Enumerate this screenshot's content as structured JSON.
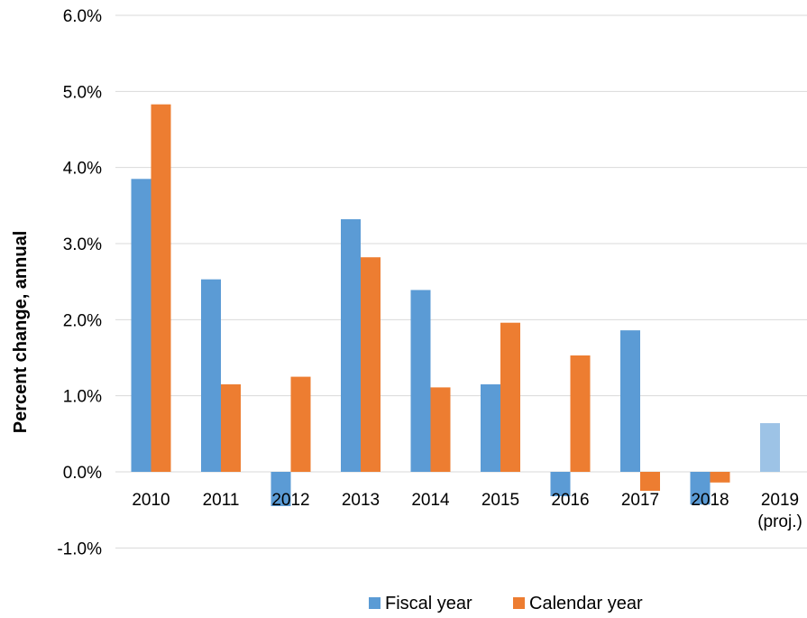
{
  "chart_data": {
    "type": "bar",
    "title": "",
    "xlabel": "",
    "ylabel": "Percent change, annual",
    "categories": [
      [
        "2010"
      ],
      [
        "2011"
      ],
      [
        "2012"
      ],
      [
        "2013"
      ],
      [
        "2014"
      ],
      [
        "2015"
      ],
      [
        "2016"
      ],
      [
        "2017"
      ],
      [
        "2018"
      ],
      [
        "2019",
        "(proj.)"
      ]
    ],
    "series": [
      {
        "name": "Fiscal year",
        "color": "#5b9bd5",
        "projected_color": "#9dc3e6",
        "values": [
          3.85,
          2.53,
          -0.45,
          3.32,
          2.39,
          1.15,
          -0.32,
          1.86,
          -0.43,
          0.64
        ],
        "projected_index": 9
      },
      {
        "name": "Calendar year",
        "color": "#ed7d31",
        "values": [
          4.83,
          1.15,
          1.25,
          2.82,
          1.11,
          1.96,
          1.53,
          -0.25,
          -0.14,
          null
        ]
      }
    ],
    "yticks": [
      "-1.0%",
      "0.0%",
      "1.0%",
      "2.0%",
      "3.0%",
      "4.0%",
      "5.0%",
      "6.0%"
    ],
    "ytick_values": [
      -1,
      0,
      1,
      2,
      3,
      4,
      5,
      6
    ],
    "ylim": [
      -1,
      6
    ],
    "grid": true,
    "legend_position": "bottom"
  }
}
